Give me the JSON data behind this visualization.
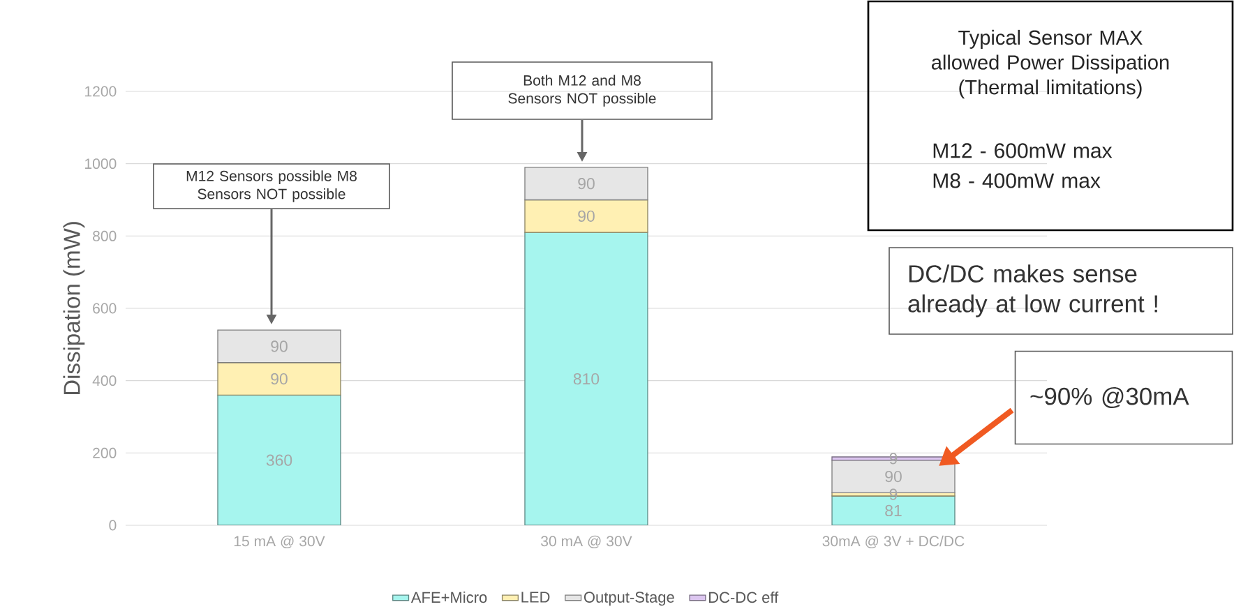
{
  "chart_data": {
    "type": "bar",
    "stacked": true,
    "ylabel": "Dissipation (mW)",
    "categories": [
      "15 mA @ 30V",
      "30 mA @ 30V",
      "30mA @ 3V + DC/DC"
    ],
    "series": [
      {
        "name": "AFE+Micro",
        "color": "#a6f5ee",
        "values": [
          360,
          810,
          81
        ],
        "value_labels": [
          "360",
          "810",
          "81"
        ]
      },
      {
        "name": "LED",
        "color": "#fff0b3",
        "values": [
          90,
          90,
          9
        ],
        "value_labels": [
          "90",
          "90",
          "9"
        ]
      },
      {
        "name": "Output-Stage",
        "color": "#e6e6e6",
        "values": [
          90,
          90,
          90
        ],
        "value_labels": [
          "90",
          "90",
          "90"
        ]
      },
      {
        "name": "DC-DC eff",
        "color": "#dcc6f0",
        "values": [
          null,
          null,
          9
        ],
        "value_labels": [
          null,
          null,
          "9"
        ]
      }
    ],
    "ylim": [
      0,
      1200
    ],
    "yticks": [
      0,
      200,
      400,
      600,
      800,
      1000,
      1200
    ],
    "grid": "y",
    "legend": "bottom",
    "annotations": [
      "M12 Sensors possible M8 Sensors NOT possible",
      "Both M12 and M8 Sensors NOT possible",
      "Typical Sensor MAX allowed Power Dissipation (Thermal limitations)",
      "M12 - 600mW max",
      "M8 - 400mW max",
      "DC/DC makes sense already at low current !",
      "~90% @30mA"
    ]
  }
}
